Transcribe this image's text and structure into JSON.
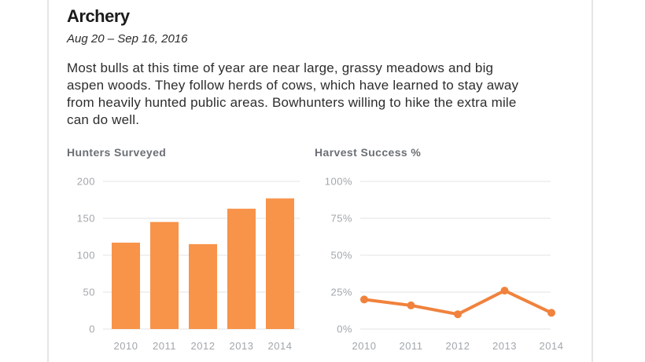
{
  "header": {
    "title": "Archery",
    "date_range": "Aug 20 – Sep 16, 2016",
    "description": "Most bulls at this time of year are near large, grassy meadows and big\naspen woods. They follow herds of cows, which have learned to stay away\nfrom heavily hunted public areas. Bowhunters willing to hike the extra mile\ncan do well."
  },
  "colors": {
    "bar": "#F8934A",
    "line": "#F0823D",
    "grid": "#E3E3E3",
    "axis_text": "#A2A7AC",
    "chart_title_text": "#6B6F74",
    "heading_text": "#1B1B1B",
    "body_text": "#2D2D2D",
    "divider": "#E5E5E5"
  },
  "chart_data": [
    {
      "type": "bar",
      "title": "Hunters Surveyed",
      "categories": [
        "2010",
        "2011",
        "2012",
        "2013",
        "2014"
      ],
      "values": [
        117,
        145,
        115,
        163,
        177
      ],
      "yticks": [
        0,
        50,
        100,
        150,
        200
      ],
      "ytick_labels": [
        "0",
        "50",
        "100",
        "150",
        "200"
      ],
      "ylim": [
        0,
        200
      ],
      "grid": true,
      "legend": "none",
      "bar_color": "#F8934A"
    },
    {
      "type": "line",
      "title": "Harvest Success %",
      "categories": [
        "2010",
        "2011",
        "2012",
        "2013",
        "2014"
      ],
      "values": [
        20,
        16,
        10,
        26,
        11
      ],
      "yticks": [
        0,
        25,
        50,
        75,
        100
      ],
      "ytick_labels": [
        "0%",
        "25%",
        "50%",
        "75%",
        "100%"
      ],
      "ylim": [
        0,
        100
      ],
      "grid": true,
      "legend": "none",
      "line_color": "#F0823D",
      "marker": "circle"
    }
  ]
}
